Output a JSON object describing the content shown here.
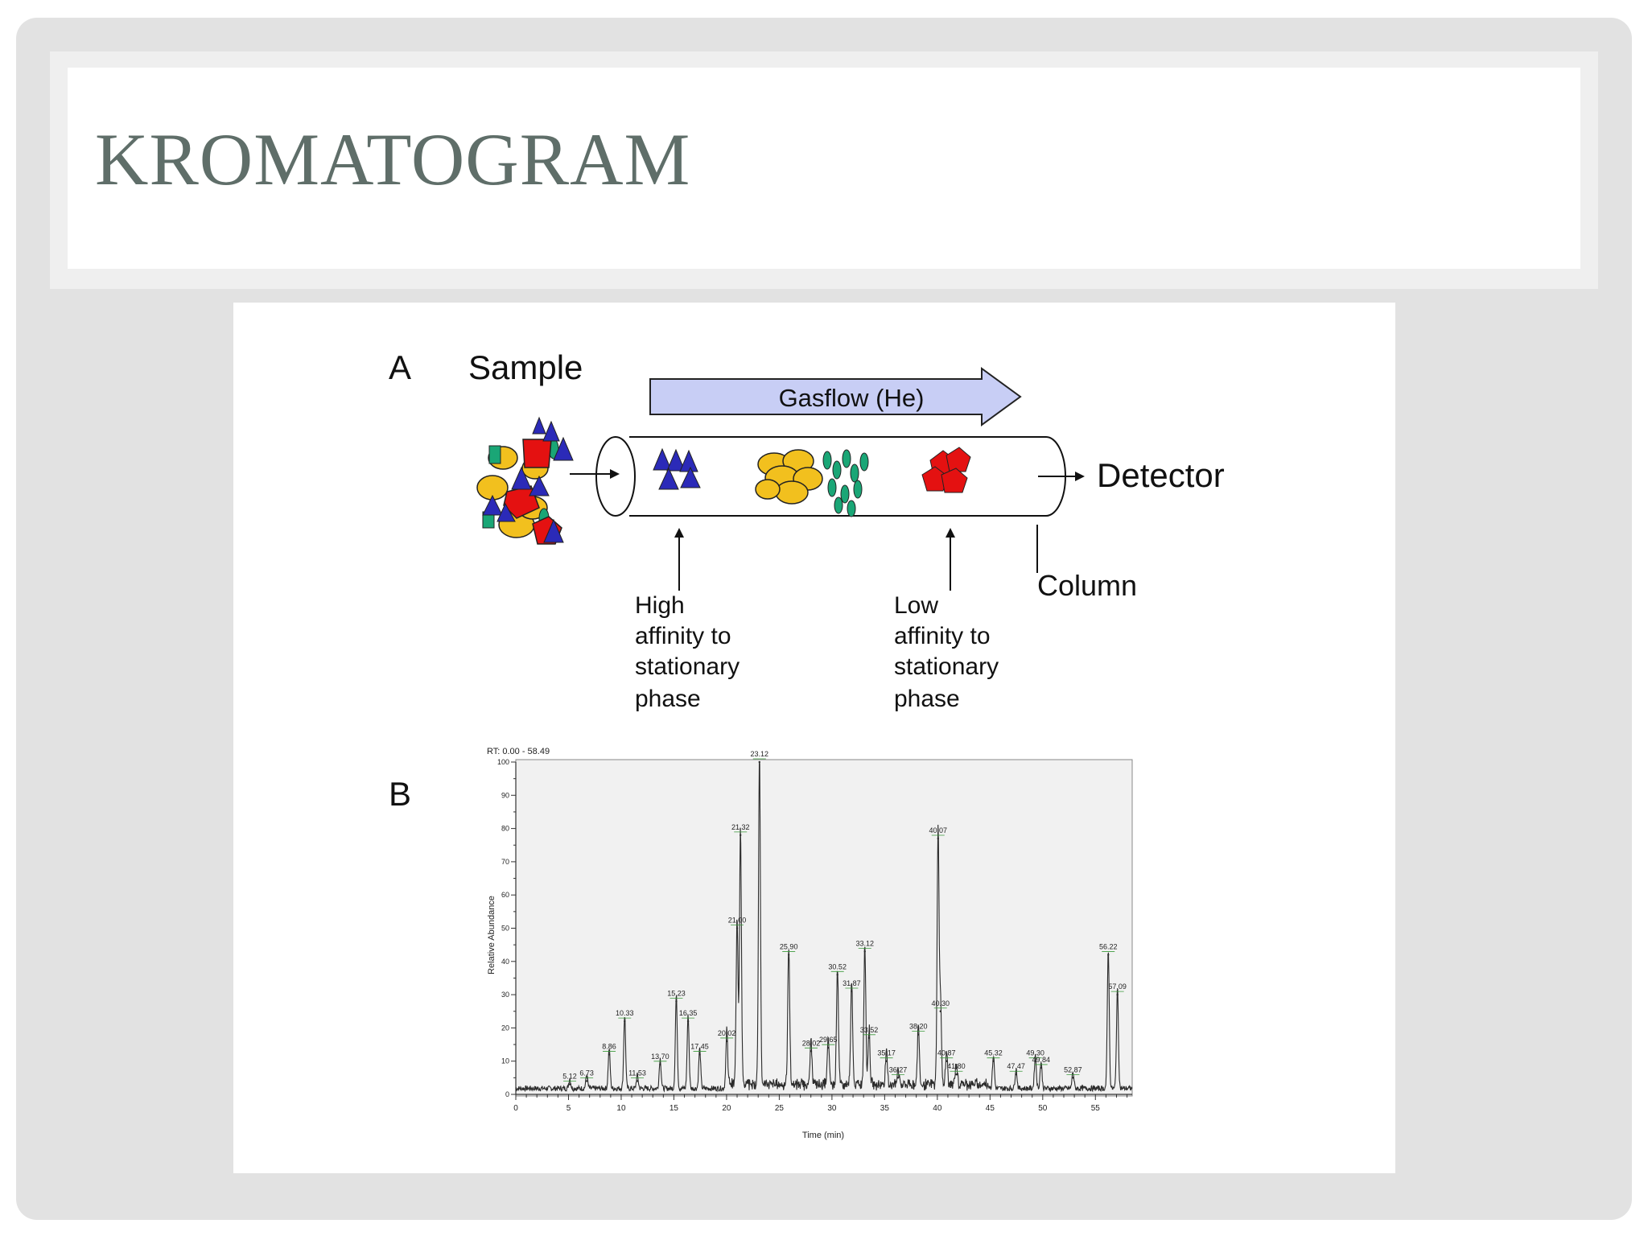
{
  "slide": {
    "title": "KROMATOGRAM"
  },
  "panel_a": {
    "label": "A",
    "sample_label": "Sample",
    "gasflow_label": "Gasflow (He)",
    "detector_label": "Detector",
    "column_label": "Column",
    "high_affinity_lines": [
      "High",
      "affinity to",
      "stationary",
      "phase"
    ],
    "low_affinity_lines": [
      "Low",
      "affinity to",
      "stationary",
      "phase"
    ],
    "colors": {
      "arrow_fill": "#c8cef5",
      "triangle": "#2b2ab8",
      "oval": "#f2c01e",
      "leaf": "#1aa676",
      "pentagon": "#e41111"
    }
  },
  "panel_b": {
    "label": "B",
    "rt_range": "RT: 0.00 - 58.49",
    "ylabel": "Relative Abundance",
    "xlabel": "Time (min)",
    "peak_color": "#2b2b2b",
    "label_line_color": "#3a9a3a",
    "chart_data": {
      "type": "line",
      "xlim": [
        0,
        58.49
      ],
      "ylim": [
        0,
        100
      ],
      "x_ticks": [
        "0",
        "5",
        "10",
        "15",
        "20",
        "25",
        "30",
        "35",
        "40",
        "45",
        "50",
        "55"
      ],
      "y_ticks": [
        "0",
        "10",
        "20",
        "30",
        "40",
        "50",
        "60",
        "70",
        "80",
        "90",
        "100"
      ],
      "peaks": [
        {
          "t": 5.12,
          "label": "5.12",
          "h": 3
        },
        {
          "t": 6.73,
          "label": "6.73",
          "h": 4
        },
        {
          "t": 8.86,
          "label": "8.86",
          "h": 12
        },
        {
          "t": 10.33,
          "label": "10.33",
          "h": 22
        },
        {
          "t": 11.53,
          "label": "11.53",
          "h": 4
        },
        {
          "t": 13.7,
          "label": "13.70",
          "h": 9
        },
        {
          "t": 15.23,
          "label": "15.23",
          "h": 28
        },
        {
          "t": 16.35,
          "label": "16.35",
          "h": 22
        },
        {
          "t": 17.45,
          "label": "17.45",
          "h": 12
        },
        {
          "t": 20.02,
          "label": "20.02",
          "h": 16
        },
        {
          "t": 21.0,
          "label": "21.00",
          "h": 50
        },
        {
          "t": 21.32,
          "label": "21.32",
          "h": 78
        },
        {
          "t": 23.12,
          "label": "23.12",
          "h": 100
        },
        {
          "t": 25.9,
          "label": "25.90",
          "h": 42
        },
        {
          "t": 28.02,
          "label": "28.02",
          "h": 13
        },
        {
          "t": 29.65,
          "label": "29.65",
          "h": 14
        },
        {
          "t": 30.52,
          "label": "30.52",
          "h": 36
        },
        {
          "t": 31.87,
          "label": "31.87",
          "h": 31
        },
        {
          "t": 33.12,
          "label": "33.12",
          "h": 43
        },
        {
          "t": 33.52,
          "label": "33.52",
          "h": 17
        },
        {
          "t": 35.17,
          "label": "35.17",
          "h": 10
        },
        {
          "t": 36.27,
          "label": "36.27",
          "h": 5
        },
        {
          "t": 38.2,
          "label": "38.20",
          "h": 18
        },
        {
          "t": 40.07,
          "label": "40.07",
          "h": 77
        },
        {
          "t": 40.3,
          "label": "40.30",
          "h": 25
        },
        {
          "t": 40.87,
          "label": "40.87",
          "h": 10
        },
        {
          "t": 41.8,
          "label": "41.80",
          "h": 6
        },
        {
          "t": 45.32,
          "label": "45.32",
          "h": 10
        },
        {
          "t": 47.47,
          "label": "47.47",
          "h": 6
        },
        {
          "t": 49.3,
          "label": "49.30",
          "h": 10
        },
        {
          "t": 49.84,
          "label": "49.84",
          "h": 8
        },
        {
          "t": 52.87,
          "label": "52.87",
          "h": 5
        },
        {
          "t": 56.22,
          "label": "56.22",
          "h": 42
        },
        {
          "t": 57.09,
          "label": "57.09",
          "h": 30
        }
      ]
    }
  }
}
